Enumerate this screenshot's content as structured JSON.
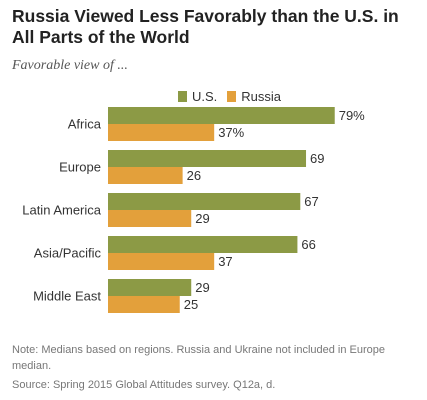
{
  "chart_data": {
    "type": "bar",
    "orientation": "horizontal",
    "title": "Russia Viewed Less Favorably than the U.S. in All Parts of the World",
    "subtitle": "Favorable view of ...",
    "categories": [
      "Africa",
      "Europe",
      "Latin America",
      "Asia/Pacific",
      "Middle East"
    ],
    "series": [
      {
        "name": "U.S.",
        "values": [
          79,
          69,
          67,
          66,
          29
        ],
        "labels": [
          "79%",
          "69",
          "67",
          "66",
          "29"
        ],
        "color": "#8c9a45"
      },
      {
        "name": "Russia",
        "values": [
          37,
          26,
          29,
          37,
          25
        ],
        "labels": [
          "37%",
          "26",
          "29",
          "37",
          "25"
        ],
        "color": "#e3a03b"
      }
    ],
    "legend_position": "top",
    "grid": false,
    "xlim": [
      0,
      100
    ],
    "note": "Note: Medians based on regions. Russia and Ukraine not included in Europe median.",
    "source": "Source: Spring 2015 Global Attitudes survey. Q12a, d."
  }
}
